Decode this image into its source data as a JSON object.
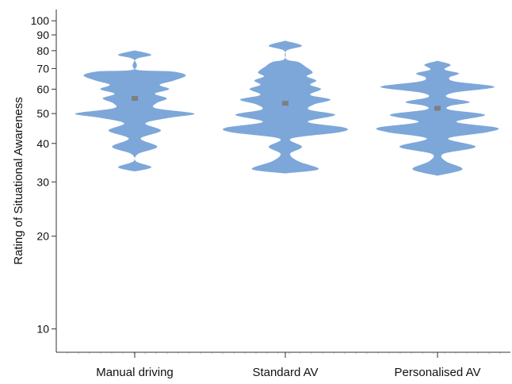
{
  "chart_data": {
    "type": "violin",
    "title": "",
    "xlabel": "",
    "ylabel": "Rating of Situational Awareness",
    "y_scale": "log",
    "ylim": [
      8.5,
      105
    ],
    "y_ticks": [
      10,
      20,
      30,
      40,
      50,
      60,
      70,
      80,
      90,
      100
    ],
    "y_tick_labels": [
      "10",
      "20",
      "30",
      "40",
      "50",
      "60",
      "70",
      "80",
      "90",
      "100"
    ],
    "grid": false,
    "colors": {
      "violin": "#7da7d9",
      "mean_marker": "#7f7f7f",
      "axis": "#333333"
    },
    "categories": [
      "Manual driving",
      "Standard AV",
      "Personalised AV"
    ],
    "series": [
      {
        "category": "Manual driving",
        "mean": 56,
        "density": [
          [
            32.5,
            0.02
          ],
          [
            33.5,
            0.28
          ],
          [
            35,
            0.02
          ],
          [
            37,
            0.06
          ],
          [
            39,
            0.38
          ],
          [
            41.5,
            0.1
          ],
          [
            44,
            0.44
          ],
          [
            46.5,
            0.18
          ],
          [
            48.5,
            0.6
          ],
          [
            50,
            1.0
          ],
          [
            52,
            0.36
          ],
          [
            54,
            0.36
          ],
          [
            56,
            0.54
          ],
          [
            58,
            0.34
          ],
          [
            60,
            0.58
          ],
          [
            62,
            0.42
          ],
          [
            64,
            0.66
          ],
          [
            66.5,
            0.86
          ],
          [
            68.5,
            0.62
          ],
          [
            69.5,
            0.02
          ],
          [
            75,
            0.02
          ],
          [
            77.5,
            0.28
          ],
          [
            80,
            0.02
          ]
        ]
      },
      {
        "category": "Standard AV",
        "mean": 54,
        "density": [
          [
            32,
            0.02
          ],
          [
            33,
            0.56
          ],
          [
            35,
            0.22
          ],
          [
            37,
            0.08
          ],
          [
            39,
            0.28
          ],
          [
            41.5,
            0.1
          ],
          [
            43.5,
            0.92
          ],
          [
            45,
            1.0
          ],
          [
            47,
            0.38
          ],
          [
            49.5,
            0.84
          ],
          [
            51.5,
            0.4
          ],
          [
            53.5,
            0.48
          ],
          [
            55.5,
            0.76
          ],
          [
            57.5,
            0.42
          ],
          [
            60,
            0.6
          ],
          [
            62,
            0.42
          ],
          [
            64,
            0.52
          ],
          [
            66,
            0.36
          ],
          [
            68,
            0.46
          ],
          [
            71,
            0.34
          ],
          [
            73.5,
            0.22
          ],
          [
            75,
            0.02
          ],
          [
            80,
            0.02
          ],
          [
            83,
            0.28
          ],
          [
            86,
            0.02
          ]
        ]
      },
      {
        "category": "Personalised AV",
        "mean": 52,
        "density": [
          [
            31.5,
            0.02
          ],
          [
            33,
            0.42
          ],
          [
            35,
            0.14
          ],
          [
            37,
            0.1
          ],
          [
            39,
            0.64
          ],
          [
            41.5,
            0.18
          ],
          [
            43.5,
            0.84
          ],
          [
            45,
            1.0
          ],
          [
            47,
            0.32
          ],
          [
            49.5,
            0.8
          ],
          [
            51.5,
            0.2
          ],
          [
            53,
            0.22
          ],
          [
            54.5,
            0.54
          ],
          [
            56.5,
            0.16
          ],
          [
            58.5,
            0.28
          ],
          [
            61,
            0.96
          ],
          [
            63.5,
            0.3
          ],
          [
            65.5,
            0.2
          ],
          [
            67.5,
            0.36
          ],
          [
            69.5,
            0.12
          ],
          [
            72,
            0.22
          ],
          [
            74,
            0.02
          ]
        ]
      }
    ]
  }
}
